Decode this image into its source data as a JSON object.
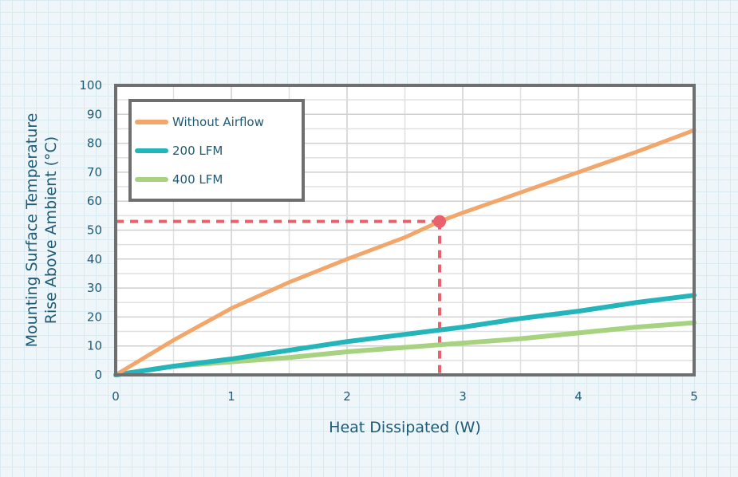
{
  "chart_data": {
    "type": "line",
    "xlabel": "Heat Dissipated (W)",
    "ylabel_lines": [
      "Mounting Surface Temperature",
      "Rise Above Ambient (°C)"
    ],
    "xlim": [
      0,
      5
    ],
    "ylim": [
      0,
      100
    ],
    "x_ticks": [
      0,
      1,
      2,
      3,
      4,
      5
    ],
    "y_ticks": [
      0,
      10,
      20,
      30,
      40,
      50,
      60,
      70,
      80,
      90,
      100
    ],
    "grid": true,
    "legend_position": "top-left",
    "series": [
      {
        "name": "Without Airflow",
        "color": "#f2a66a",
        "x": [
          0,
          0.5,
          1,
          1.5,
          2,
          2.5,
          2.8,
          3,
          3.5,
          4,
          4.5,
          5
        ],
        "y": [
          0,
          12,
          23,
          32,
          40,
          47.5,
          53,
          56,
          63,
          70,
          77,
          84.5
        ]
      },
      {
        "name": "200 LFM",
        "color": "#23b5b9",
        "x": [
          0,
          0.5,
          1,
          1.5,
          2,
          2.5,
          3,
          3.5,
          4,
          4.5,
          5
        ],
        "y": [
          0,
          3,
          5.5,
          8.5,
          11.5,
          14,
          16.5,
          19.5,
          22,
          25,
          27.5
        ]
      },
      {
        "name": "400 LFM",
        "color": "#a7d380",
        "x": [
          0,
          0.5,
          1,
          1.5,
          2,
          2.5,
          3,
          3.5,
          4,
          4.5,
          5
        ],
        "y": [
          0,
          3,
          4.5,
          6,
          8,
          9.5,
          11,
          12.5,
          14.5,
          16.5,
          18
        ]
      }
    ],
    "annotation": {
      "x": 2.8,
      "y": 53,
      "color": "#e8626e"
    }
  }
}
